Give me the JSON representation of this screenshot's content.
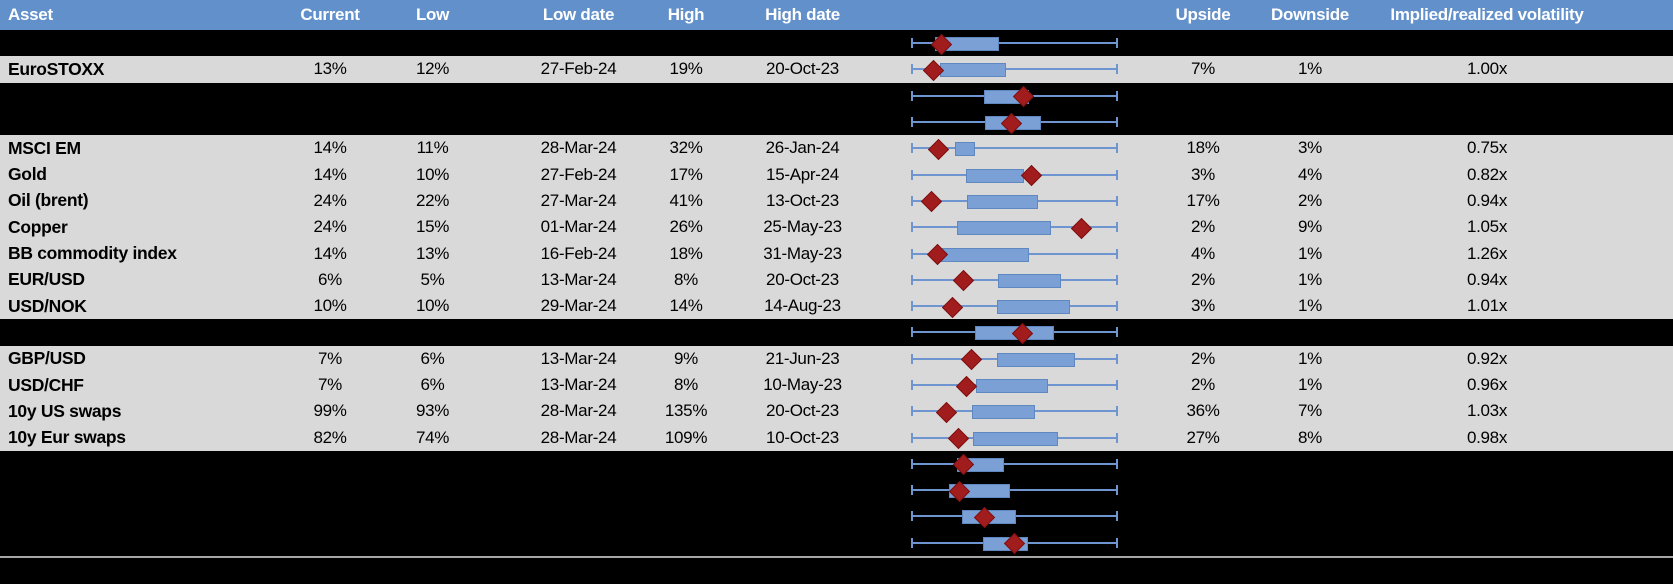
{
  "header": {
    "columns": [
      "Asset",
      "Current",
      "Low",
      "Low date",
      "High",
      "High date",
      "",
      "Upside",
      "Downside",
      "Implied/realized volatility"
    ]
  },
  "colors": {
    "header_bg": "#6190ca",
    "data_row_bg": "#d9d9d9",
    "blank_row_bg": "#000000",
    "whisker": "#6e95d0",
    "box_fill": "#7aa0d5",
    "box_border": "#6088c0",
    "diamond_fill": "#a11c1c",
    "diamond_border": "#7c1111",
    "divider": "#a6a6a6",
    "footer_bg": "#000000"
  },
  "rows": [
    {
      "type": "blank",
      "plot": {
        "box": [
          0.11,
          0.415
        ],
        "diamond": 0.137
      }
    },
    {
      "type": "data",
      "asset": "EuroSTOXX",
      "current": "13%",
      "low": "12%",
      "low_date": "27-Feb-24",
      "high": "19%",
      "high_date": "20-Oct-23",
      "upside": "7%",
      "downside": "1%",
      "implied": "1.00x",
      "plot": {
        "box": [
          0.137,
          0.449
        ],
        "diamond": 0.098
      }
    },
    {
      "type": "blank",
      "plot": {
        "box": [
          0.351,
          0.56
        ],
        "diamond": 0.538
      }
    },
    {
      "type": "blank",
      "plot": {
        "box": [
          0.356,
          0.621
        ],
        "diamond": 0.481
      }
    },
    {
      "type": "data",
      "asset": "MSCI EM",
      "current": "14%",
      "low": "11%",
      "low_date": "28-Mar-24",
      "high": "32%",
      "high_date": "26-Jan-24",
      "upside": "18%",
      "downside": "3%",
      "implied": "0.75x",
      "plot": {
        "box": [
          0.21,
          0.299
        ],
        "diamond": 0.125
      }
    },
    {
      "type": "data",
      "asset": "Gold",
      "current": "14%",
      "low": "10%",
      "low_date": "27-Feb-24",
      "high": "17%",
      "high_date": "15-Apr-24",
      "upside": "3%",
      "downside": "4%",
      "implied": "0.82x",
      "plot": {
        "box": [
          0.263,
          0.538
        ],
        "diamond": 0.577
      }
    },
    {
      "type": "data",
      "asset": "Oil (brent)",
      "current": "24%",
      "low": "22%",
      "low_date": "27-Mar-24",
      "high": "41%",
      "high_date": "13-Oct-23",
      "upside": "17%",
      "downside": "2%",
      "implied": "0.94x",
      "plot": {
        "box": [
          0.267,
          0.605
        ],
        "diamond": 0.088
      }
    },
    {
      "type": "data",
      "asset": "Copper",
      "current": "24%",
      "low": "15%",
      "low_date": "01-Mar-24",
      "high": "26%",
      "high_date": "25-May-23",
      "upside": "2%",
      "downside": "9%",
      "implied": "1.05x",
      "plot": {
        "box": [
          0.22,
          0.668
        ],
        "diamond": 0.82
      }
    },
    {
      "type": "data",
      "asset": "BB commodity index",
      "current": "14%",
      "low": "13%",
      "low_date": "16-Feb-24",
      "high": "18%",
      "high_date": "31-May-23",
      "upside": "4%",
      "downside": "1%",
      "implied": "1.26x",
      "plot": {
        "box": [
          0.137,
          0.56
        ],
        "diamond": 0.12
      }
    },
    {
      "type": "data",
      "asset": "EUR/USD",
      "current": "6%",
      "low": "5%",
      "low_date": "13-Mar-24",
      "high": "8%",
      "high_date": "20-Oct-23",
      "upside": "2%",
      "downside": "1%",
      "implied": "0.94x",
      "plot": {
        "box": [
          0.418,
          0.717
        ],
        "diamond": 0.245
      }
    },
    {
      "type": "data",
      "asset": "USD/NOK",
      "current": "10%",
      "low": "10%",
      "low_date": "29-Mar-24",
      "high": "14%",
      "high_date": "14-Aug-23",
      "upside": "3%",
      "downside": "1%",
      "implied": "1.01x",
      "plot": {
        "box": [
          0.413,
          0.763
        ],
        "diamond": 0.194
      }
    },
    {
      "type": "blank",
      "plot": {
        "box": [
          0.307,
          0.681
        ],
        "diamond": 0.535
      }
    },
    {
      "type": "data",
      "asset": "GBP/USD",
      "current": "7%",
      "low": "6%",
      "low_date": "13-Mar-24",
      "high": "9%",
      "high_date": "21-Jun-23",
      "upside": "2%",
      "downside": "1%",
      "implied": "0.92x",
      "plot": {
        "box": [
          0.413,
          0.787
        ],
        "diamond": 0.286
      }
    },
    {
      "type": "data",
      "asset": "USD/CHF",
      "current": "7%",
      "low": "6%",
      "low_date": "13-Mar-24",
      "high": "8%",
      "high_date": "10-May-23",
      "upside": "2%",
      "downside": "1%",
      "implied": "0.96x",
      "plot": {
        "box": [
          0.312,
          0.654
        ],
        "diamond": 0.263
      }
    },
    {
      "type": "data",
      "asset": "10y US swaps",
      "current": "99%",
      "low": "93%",
      "low_date": "28-Mar-24",
      "high": "135%",
      "high_date": "20-Oct-23",
      "upside": "36%",
      "downside": "7%",
      "implied": "1.03x",
      "plot": {
        "box": [
          0.291,
          0.589
        ],
        "diamond": 0.164
      }
    },
    {
      "type": "data",
      "asset": "10y Eur swaps",
      "current": "82%",
      "low": "74%",
      "low_date": "28-Mar-24",
      "high": "109%",
      "high_date": "10-Oct-23",
      "upside": "27%",
      "downside": "8%",
      "implied": "0.98x",
      "plot": {
        "box": [
          0.296,
          0.701
        ],
        "diamond": 0.223
      }
    },
    {
      "type": "blank",
      "plot": {
        "box": [
          0.218,
          0.438
        ],
        "diamond": 0.245
      }
    },
    {
      "type": "blank",
      "plot": {
        "box": [
          0.182,
          0.467
        ],
        "diamond": 0.226
      }
    },
    {
      "type": "blank",
      "plot": {
        "box": [
          0.245,
          0.499
        ],
        "diamond": 0.348
      }
    },
    {
      "type": "blank",
      "plot": {
        "box": [
          0.348,
          0.556
        ],
        "diamond": 0.494
      }
    }
  ]
}
